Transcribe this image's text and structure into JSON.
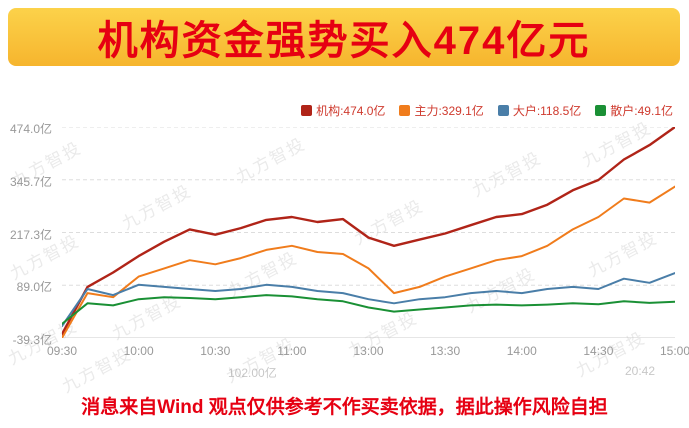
{
  "banner": {
    "title": "机构资金强势买入474亿元"
  },
  "colors": {
    "accent_red": "#e60012",
    "banner_bg_top": "#fcd24a",
    "banner_bg_bottom": "#f6b52e",
    "legend_text": "#cf3a2e",
    "axis_text": "#999999",
    "grid": "#dddddd",
    "watermark": "#b5b5b5"
  },
  "watermark": "九方智投",
  "obscured_fragments": {
    "left": "102.00亿",
    "right": "20:42"
  },
  "disclaimer": "消息来自Wind  观点仅供参考不作买卖依据，据此操作风险自担",
  "chart_data": {
    "type": "line",
    "title": "机构资金强势买入474亿元",
    "legend_position": "top",
    "grid": "horizontal-dashed",
    "ylim": [
      -39.3,
      474.0
    ],
    "y_ticks": [
      "474.0亿",
      "345.7亿",
      "217.3亿",
      "89.0亿",
      "-39.3亿"
    ],
    "x_ticks": [
      "09:30",
      "10:00",
      "10:30",
      "11:00",
      "13:00",
      "13:30",
      "14:00",
      "14:30",
      "15:00"
    ],
    "x_minutes": [
      0,
      10,
      20,
      30,
      40,
      50,
      60,
      70,
      80,
      90,
      100,
      110,
      120,
      130,
      140,
      150,
      160,
      170,
      180,
      190,
      200,
      210,
      220,
      230,
      240
    ],
    "series": [
      {
        "key": "institution",
        "name": "机构",
        "value_label": "474.0亿",
        "color": "#b02418",
        "values": [
          -30,
          85,
          120,
          160,
          195,
          225,
          212,
          228,
          248,
          255,
          243,
          250,
          205,
          185,
          200,
          215,
          235,
          255,
          262,
          285,
          320,
          345,
          395,
          430,
          474.0
        ]
      },
      {
        "key": "main-force",
        "name": "主力",
        "value_label": "329.1亿",
        "color": "#f07c1c",
        "values": [
          -39,
          70,
          60,
          110,
          130,
          150,
          140,
          155,
          175,
          185,
          170,
          165,
          130,
          70,
          85,
          110,
          130,
          150,
          160,
          185,
          225,
          255,
          300,
          290,
          329.1
        ]
      },
      {
        "key": "big-investor",
        "name": "大户",
        "value_label": "118.5亿",
        "color": "#4a7ea8",
        "values": [
          -10,
          80,
          65,
          90,
          85,
          80,
          75,
          80,
          90,
          85,
          75,
          70,
          55,
          45,
          55,
          60,
          70,
          75,
          70,
          80,
          85,
          80,
          105,
          95,
          118.5
        ]
      },
      {
        "key": "retail",
        "name": "散户",
        "value_label": "49.1亿",
        "color": "#1a9035",
        "values": [
          -5,
          45,
          40,
          55,
          60,
          58,
          55,
          60,
          65,
          62,
          55,
          50,
          35,
          25,
          30,
          35,
          40,
          42,
          40,
          42,
          45,
          43,
          50,
          46,
          49.1
        ]
      }
    ]
  }
}
